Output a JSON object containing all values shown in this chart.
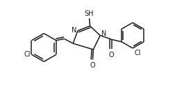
{
  "bg_color": "#ffffff",
  "line_color": "#1a1a1a",
  "lw": 1.1,
  "fs": 7.0,
  "figsize": [
    2.65,
    1.38
  ],
  "dpi": 100,
  "xlim": [
    0.0,
    1.0
  ],
  "ylim": [
    0.15,
    0.85
  ]
}
